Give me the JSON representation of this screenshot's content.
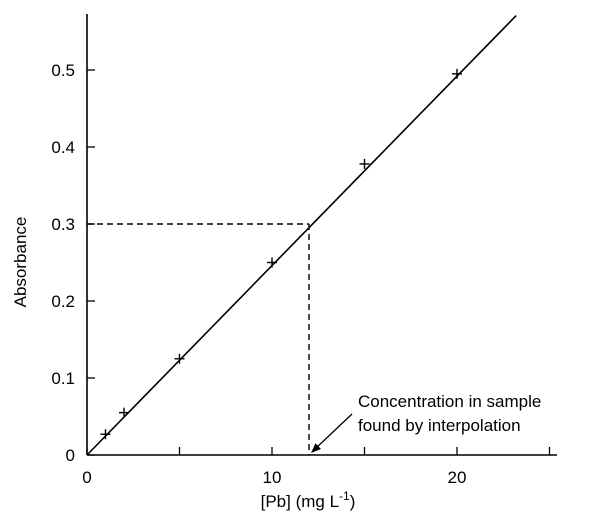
{
  "chart_data": {
    "type": "scatter",
    "xlabel": "[Pb] (mg L",
    "xlabel_superscript": "-1",
    "xlabel_suffix": ")",
    "ylabel": "Absorbance",
    "xlim": [
      0,
      25
    ],
    "ylim": [
      0,
      0.57
    ],
    "x_ticks": [
      0,
      5,
      10,
      15,
      20,
      25
    ],
    "x_tick_labels": [
      "0",
      "",
      "10",
      "",
      "20",
      ""
    ],
    "y_ticks": [
      0,
      0.1,
      0.2,
      0.3,
      0.4,
      0.5
    ],
    "y_tick_labels": [
      "0",
      "0.1",
      "0.2",
      "0.3",
      "0.4",
      "0.5"
    ],
    "grid": false,
    "points": {
      "x": [
        1,
        2,
        5,
        10,
        15,
        20
      ],
      "y": [
        0.027,
        0.055,
        0.125,
        0.25,
        0.378,
        0.495
      ]
    },
    "fit_line": {
      "slope": 0.0246,
      "intercept": 0,
      "x_end": 23.2
    },
    "interpolation": {
      "absorbance": 0.3,
      "concentration": 12
    },
    "annotation": {
      "lines": [
        "Concentration in sample",
        "found by interpolation"
      ],
      "target": {
        "x": 12,
        "y": 0
      }
    }
  }
}
